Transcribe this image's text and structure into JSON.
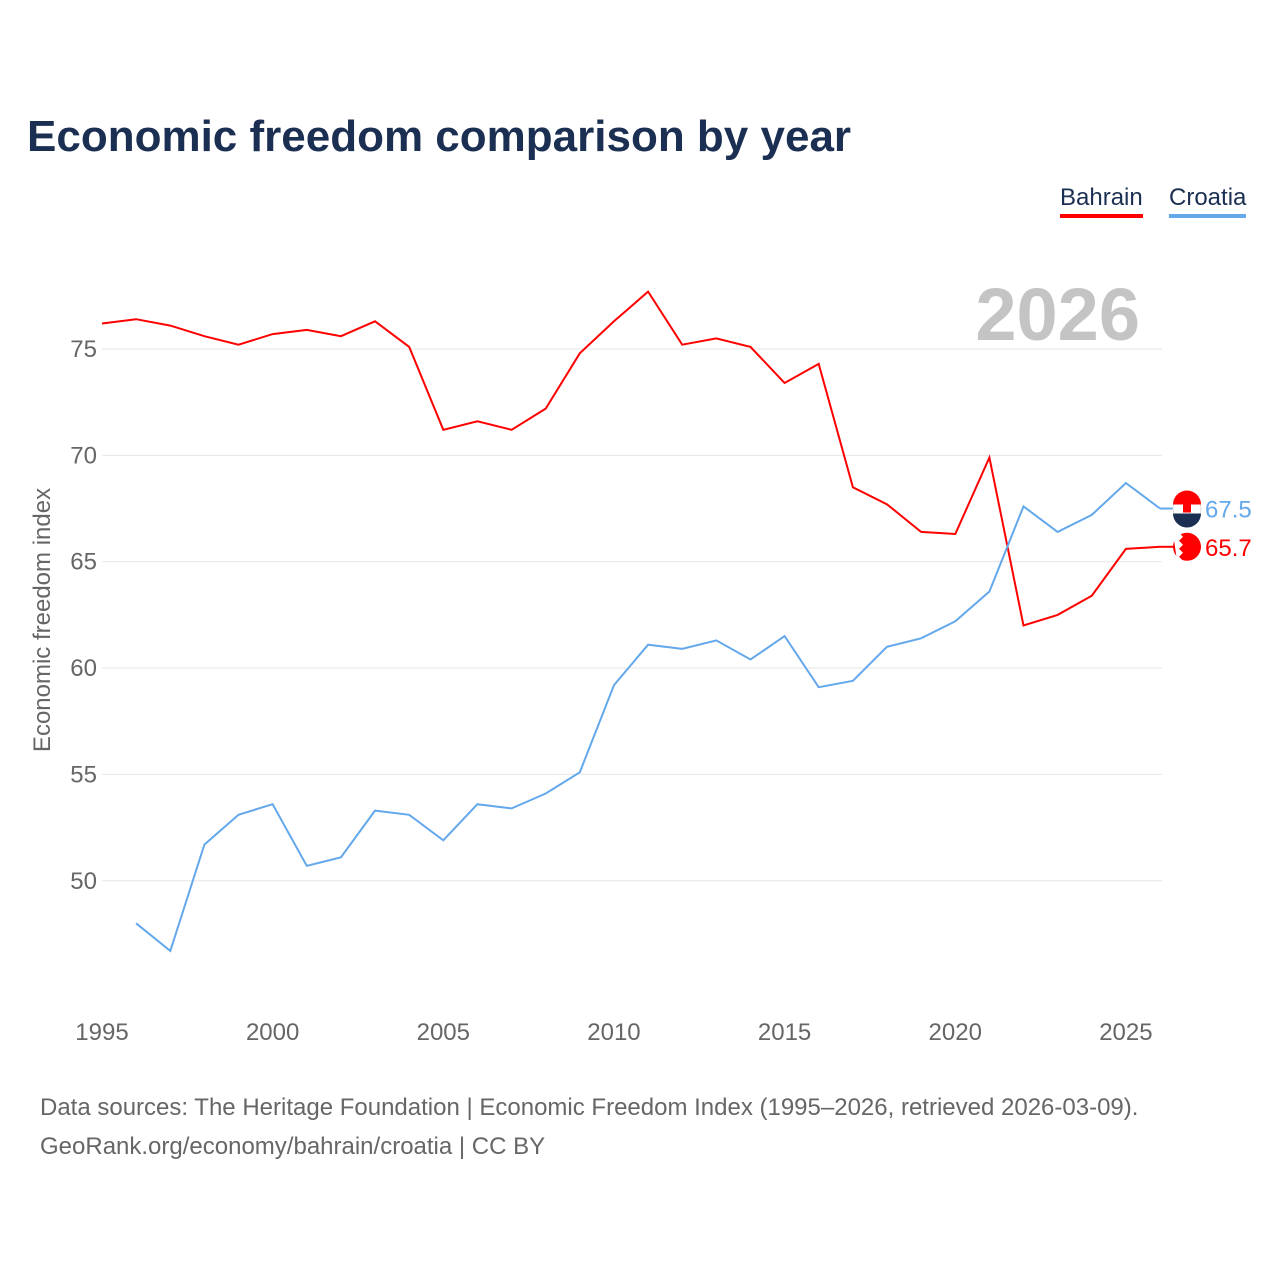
{
  "chart_data": {
    "type": "line",
    "title": "Economic freedom comparison by year",
    "xlabel": "",
    "ylabel": "Economic freedom index",
    "watermark_year": "2026",
    "xlim": [
      1995,
      2026
    ],
    "ylim": [
      44.4,
      78.5
    ],
    "x_ticks": [
      "1995",
      "2000",
      "2005",
      "2010",
      "2015",
      "2020",
      "2025"
    ],
    "y_ticks": [
      "50",
      "55",
      "60",
      "65",
      "70",
      "75"
    ],
    "grid": true,
    "legend_position": "top-right",
    "series": [
      {
        "name": "Bahrain",
        "color": "#ff0000",
        "end_label": "65.7",
        "x": [
          1995,
          1996,
          1997,
          1998,
          1999,
          2000,
          2001,
          2002,
          2003,
          2004,
          2005,
          2006,
          2007,
          2008,
          2009,
          2010,
          2011,
          2012,
          2013,
          2014,
          2015,
          2016,
          2017,
          2018,
          2019,
          2020,
          2021,
          2022,
          2023,
          2024,
          2025,
          2026
        ],
        "values": [
          76.2,
          76.4,
          76.1,
          75.6,
          75.2,
          75.7,
          75.9,
          75.6,
          76.3,
          75.1,
          71.2,
          71.6,
          71.2,
          72.2,
          74.8,
          76.3,
          77.7,
          75.2,
          75.5,
          75.1,
          73.4,
          74.3,
          68.5,
          67.7,
          66.4,
          66.3,
          69.9,
          62.0,
          62.5,
          63.4,
          65.6,
          65.7
        ]
      },
      {
        "name": "Croatia",
        "color": "#64a8ec",
        "end_label": "67.5",
        "x": [
          1996,
          1997,
          1998,
          1999,
          2000,
          2001,
          2002,
          2003,
          2004,
          2005,
          2006,
          2007,
          2008,
          2009,
          2010,
          2011,
          2012,
          2013,
          2014,
          2015,
          2016,
          2017,
          2018,
          2019,
          2020,
          2021,
          2022,
          2023,
          2024,
          2025,
          2026
        ],
        "values": [
          48.0,
          46.7,
          51.7,
          53.1,
          53.6,
          50.7,
          51.1,
          53.3,
          53.1,
          51.9,
          53.6,
          53.4,
          54.1,
          55.1,
          59.2,
          61.1,
          60.9,
          61.3,
          60.4,
          61.5,
          59.1,
          59.4,
          61.0,
          61.4,
          62.2,
          63.6,
          67.6,
          66.4,
          67.2,
          68.7,
          67.5
        ]
      }
    ]
  },
  "source_lines": [
    "Data sources: The Heritage Foundation | Economic Freedom Index (1995–2026, retrieved 2026-03-09).",
    "GeoRank.org/economy/bahrain/croatia | CC BY"
  ]
}
